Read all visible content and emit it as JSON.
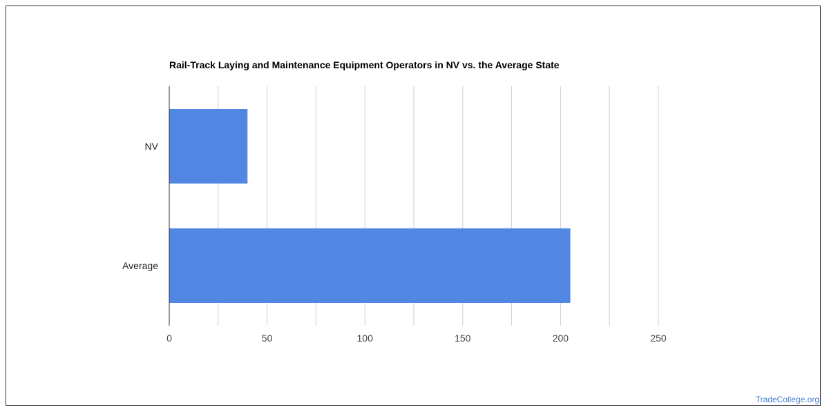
{
  "watermark": "TradeCollege.org",
  "colors": {
    "bar": "#5286e3",
    "grid": "#cccccc",
    "axis": "#333333",
    "watermark": "#4a7fd4"
  },
  "chart_data": {
    "type": "bar",
    "orientation": "horizontal",
    "title": "Rail-Track Laying and Maintenance Equipment Operators in NV vs. the Average State",
    "categories": [
      "NV",
      "Average"
    ],
    "values": [
      40,
      205
    ],
    "xlabel": "",
    "ylabel": "",
    "xlim": [
      0,
      250
    ],
    "xticks": [
      "0",
      "50",
      "100",
      "150",
      "200",
      "250"
    ],
    "grid": true,
    "legend": "none"
  }
}
